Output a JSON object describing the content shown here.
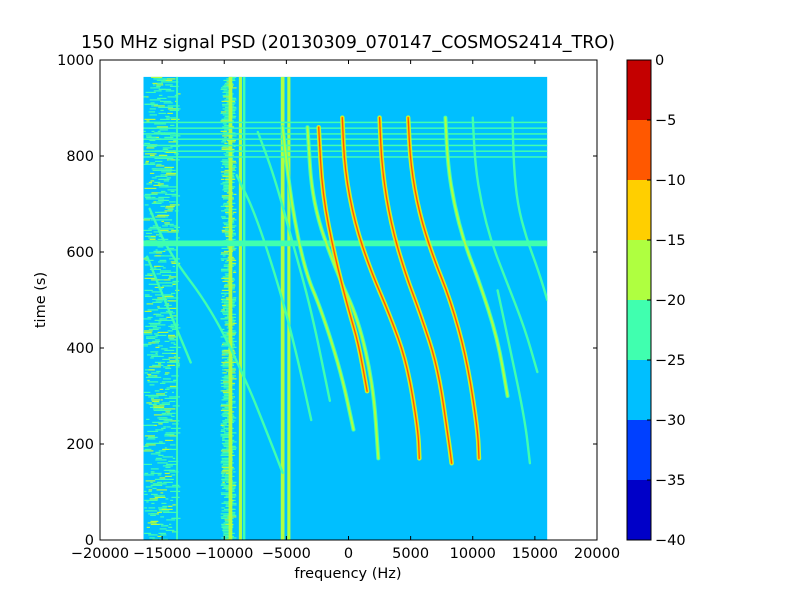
{
  "chart_data": {
    "type": "heatmap",
    "title": "150 MHz signal PSD (20130309_070147_COSMOS2414_TRO)",
    "xlabel": "frequency (Hz)",
    "ylabel": "time (s)",
    "xlim": [
      -20000,
      20000
    ],
    "ylim": [
      0,
      1000
    ],
    "xticks": [
      -20000,
      -15000,
      -10000,
      -5000,
      0,
      5000,
      10000,
      15000,
      20000
    ],
    "xtick_labels": [
      "−20000",
      "−15000",
      "−10000",
      "−5000",
      "0",
      "5000",
      "10000",
      "15000",
      "20000"
    ],
    "yticks": [
      0,
      200,
      400,
      600,
      800,
      1000
    ],
    "ytick_labels": [
      "0",
      "200",
      "400",
      "600",
      "800",
      "1000"
    ],
    "data_extent": {
      "x": [
        -16500,
        16000
      ],
      "y": [
        0,
        965
      ]
    },
    "background_level": -27.5,
    "colorbar": {
      "levels": [
        -40,
        -35,
        -30,
        -25,
        -20,
        -15,
        -10,
        -5,
        0
      ],
      "tick_labels": [
        "−40",
        "−35",
        "−30",
        "−25",
        "−20",
        "−15",
        "−10",
        "−5",
        "0"
      ],
      "colors": [
        "#0000c8",
        "#0040ff",
        "#00bfff",
        "#40ffaf",
        "#afff40",
        "#ffcf00",
        "#ff5800",
        "#c40000"
      ]
    },
    "horizontal_bands": [
      {
        "y": 618,
        "width": 12,
        "level": -22.5
      },
      {
        "y": 798,
        "width": 2,
        "level": -22.5
      },
      {
        "y": 810,
        "width": 2,
        "level": -22.5
      },
      {
        "y": 822,
        "width": 2,
        "level": -22.5
      },
      {
        "y": 835,
        "width": 2,
        "level": -22.5
      },
      {
        "y": 846,
        "width": 2,
        "level": -22.5
      },
      {
        "y": 858,
        "width": 2,
        "level": -22.5
      },
      {
        "y": 870,
        "width": 2,
        "level": -22.5
      }
    ],
    "vertical_lines": [
      {
        "x": -9500,
        "y": [
          0,
          965
        ],
        "width": 300,
        "level": -17.5
      },
      {
        "x": -8700,
        "y": [
          0,
          965
        ],
        "width": 250,
        "level": -17.5
      },
      {
        "x": -8400,
        "y": [
          0,
          965
        ],
        "width": 200,
        "level": -22.5
      },
      {
        "x": -5300,
        "y": [
          0,
          965
        ],
        "width": 300,
        "level": -17.5
      },
      {
        "x": -4800,
        "y": [
          0,
          965
        ],
        "width": 250,
        "level": -17.5
      },
      {
        "x": -13800,
        "y": [
          0,
          965
        ],
        "width": 150,
        "level": -22.5
      }
    ],
    "noise_columns": [
      {
        "x": [
          -16500,
          -13500
        ],
        "level": -22.5
      },
      {
        "x": [
          -10300,
          -9000
        ],
        "level": -22.5
      }
    ],
    "traces": [
      {
        "name": "",
        "level": -22.5,
        "points": [
          [
            -16200,
            590
          ],
          [
            -14800,
            500
          ],
          [
            -13500,
            420
          ],
          [
            -12700,
            370
          ]
        ]
      },
      {
        "name": "",
        "level": -22.5,
        "points": [
          [
            -16000,
            690
          ],
          [
            -14500,
            600
          ],
          [
            -11000,
            480
          ],
          [
            -8200,
            330
          ],
          [
            -6500,
            220
          ],
          [
            -5300,
            140
          ]
        ]
      },
      {
        "name": "",
        "level": -22.5,
        "points": [
          [
            -9000,
            760
          ],
          [
            -7500,
            680
          ],
          [
            -5500,
            520
          ],
          [
            -4200,
            390
          ],
          [
            -3000,
            250
          ]
        ]
      },
      {
        "name": "",
        "level": -22.5,
        "points": [
          [
            -7300,
            850
          ],
          [
            -6000,
            760
          ],
          [
            -4500,
            620
          ],
          [
            -3000,
            480
          ],
          [
            -1500,
            290
          ]
        ]
      },
      {
        "name": "",
        "level": -17.5,
        "points": [
          [
            -5300,
            860
          ],
          [
            -4600,
            700
          ],
          [
            -3500,
            560
          ],
          [
            -2200,
            480
          ],
          [
            -600,
            350
          ],
          [
            400,
            230
          ]
        ]
      },
      {
        "name": "",
        "level": -17.5,
        "points": [
          [
            -3300,
            860
          ],
          [
            -2900,
            700
          ],
          [
            -1000,
            560
          ],
          [
            800,
            460
          ],
          [
            2000,
            320
          ],
          [
            2400,
            170
          ]
        ]
      },
      {
        "name": "",
        "level": -5,
        "points": [
          [
            -2400,
            860
          ],
          [
            -2100,
            720
          ],
          [
            -1100,
            590
          ],
          [
            0,
            480
          ],
          [
            800,
            410
          ],
          [
            1500,
            310
          ]
        ]
      },
      {
        "name": "",
        "level": -7.5,
        "points": [
          [
            -500,
            880
          ],
          [
            -300,
            770
          ],
          [
            500,
            660
          ],
          [
            1800,
            560
          ],
          [
            3300,
            470
          ],
          [
            4700,
            370
          ],
          [
            5600,
            230
          ],
          [
            5700,
            170
          ]
        ]
      },
      {
        "name": "",
        "level": -5,
        "points": [
          [
            2500,
            880
          ],
          [
            2700,
            770
          ],
          [
            3400,
            660
          ],
          [
            4500,
            560
          ],
          [
            5800,
            470
          ],
          [
            7200,
            360
          ],
          [
            8100,
            200
          ],
          [
            8300,
            160
          ]
        ]
      },
      {
        "name": "",
        "level": -7.5,
        "points": [
          [
            4800,
            880
          ],
          [
            5000,
            780
          ],
          [
            5700,
            680
          ],
          [
            6800,
            590
          ],
          [
            8200,
            500
          ],
          [
            9500,
            380
          ],
          [
            10400,
            230
          ],
          [
            10500,
            170
          ]
        ]
      },
      {
        "name": "",
        "level": -17.5,
        "points": [
          [
            7800,
            880
          ],
          [
            8000,
            780
          ],
          [
            8500,
            700
          ],
          [
            9300,
            620
          ],
          [
            10500,
            540
          ],
          [
            12000,
            420
          ],
          [
            12800,
            300
          ]
        ]
      },
      {
        "name": "",
        "level": -22.5,
        "points": [
          [
            10000,
            880
          ],
          [
            10200,
            780
          ],
          [
            10700,
            700
          ],
          [
            11500,
            620
          ],
          [
            12700,
            540
          ],
          [
            14200,
            440
          ],
          [
            15200,
            350
          ]
        ]
      },
      {
        "name": "",
        "level": -22.5,
        "points": [
          [
            13200,
            880
          ],
          [
            13300,
            780
          ],
          [
            13600,
            700
          ],
          [
            14300,
            630
          ],
          [
            15300,
            560
          ],
          [
            16000,
            500
          ]
        ]
      },
      {
        "name": "",
        "level": -22.5,
        "points": [
          [
            12000,
            520
          ],
          [
            13000,
            400
          ],
          [
            14200,
            250
          ],
          [
            14600,
            160
          ]
        ]
      }
    ]
  }
}
